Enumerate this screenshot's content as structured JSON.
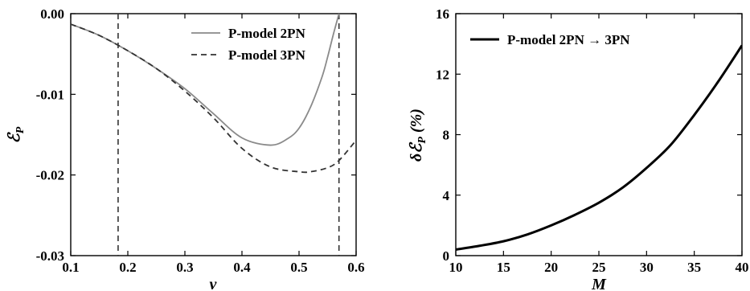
{
  "chart_data": [
    {
      "type": "line",
      "xlabel": "ν",
      "ylabel": "ℰ",
      "ylabel_sub": "P",
      "xlim": [
        0.1,
        0.6
      ],
      "ylim": [
        -0.03,
        0.0
      ],
      "xticks": [
        "0.1",
        "0.2",
        "0.3",
        "0.4",
        "0.5",
        "0.6"
      ],
      "yticks": [
        "0.00",
        "-0.01",
        "-0.02",
        "-0.03"
      ],
      "xtick_values": [
        0.1,
        0.2,
        0.3,
        0.4,
        0.5,
        0.6
      ],
      "ytick_values": [
        0.0,
        -0.01,
        -0.02,
        -0.03
      ],
      "legend_position": "top-right",
      "vlines": [
        0.183,
        0.57
      ],
      "series": [
        {
          "name": "P-model 2PN",
          "style": "solid",
          "color": "#8a8a8a",
          "x": [
            0.1,
            0.15,
            0.2,
            0.25,
            0.3,
            0.35,
            0.4,
            0.45,
            0.48,
            0.5,
            0.52,
            0.54,
            0.55,
            0.56,
            0.57
          ],
          "y": [
            -0.0013,
            -0.0027,
            -0.0046,
            -0.0068,
            -0.0093,
            -0.0124,
            -0.0154,
            -0.0163,
            -0.0155,
            -0.0142,
            -0.0116,
            -0.0079,
            -0.0054,
            -0.0026,
            0.0
          ]
        },
        {
          "name": "P-model 3PN",
          "style": "dashed",
          "color": "#333333",
          "x": [
            0.1,
            0.15,
            0.2,
            0.25,
            0.3,
            0.35,
            0.4,
            0.45,
            0.5,
            0.52,
            0.55,
            0.57,
            0.6
          ],
          "y": [
            -0.0013,
            -0.0027,
            -0.0046,
            -0.0068,
            -0.0096,
            -0.0129,
            -0.0167,
            -0.019,
            -0.0196,
            -0.0196,
            -0.0191,
            -0.0182,
            -0.0157
          ]
        }
      ]
    },
    {
      "type": "line",
      "xlabel": "M",
      "ylabel": "δℰ",
      "ylabel_sub": "P",
      "ylabel_unit": "(%)",
      "xlim": [
        10,
        40
      ],
      "ylim": [
        0,
        16
      ],
      "xticks": [
        "10",
        "15",
        "20",
        "25",
        "30",
        "35",
        "40"
      ],
      "yticks": [
        "0",
        "4",
        "8",
        "12",
        "16"
      ],
      "xtick_values": [
        10,
        15,
        20,
        25,
        30,
        35,
        40
      ],
      "ytick_values": [
        0,
        4,
        8,
        12,
        16
      ],
      "legend_position": "top-left",
      "series": [
        {
          "name": "P-model 2PN → 3PN",
          "style": "solid",
          "color": "#000000",
          "x": [
            10,
            12.5,
            15,
            17.5,
            20,
            22.5,
            25,
            27.5,
            30,
            32.5,
            35,
            37.5,
            40
          ],
          "y": [
            0.4,
            0.65,
            0.95,
            1.4,
            2.0,
            2.7,
            3.5,
            4.5,
            5.8,
            7.3,
            9.3,
            11.5,
            13.9
          ]
        }
      ]
    }
  ]
}
